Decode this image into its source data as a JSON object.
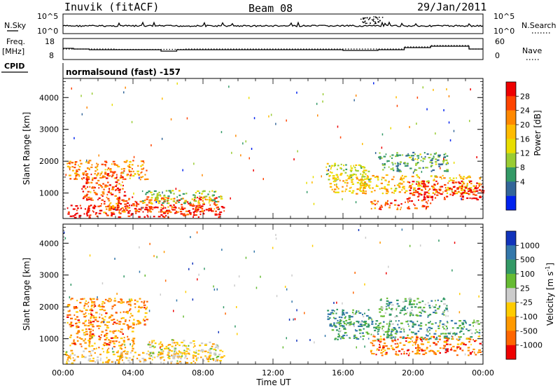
{
  "header": {
    "station": "Inuvik (fitACF)",
    "beam": "Beam 08",
    "date": "29/Jan/2011"
  },
  "top_panels": {
    "nsky_label": "N.Sky",
    "nsky_ticks": [
      "10^5",
      "10^0"
    ],
    "nsearch_label": "N.Search",
    "nsearch_ticks": [
      "10^5",
      "10^0"
    ],
    "freq_label": "Freq.",
    "freq_unit": "[MHz]",
    "freq_ticks": [
      "18",
      "8"
    ],
    "nave_label": "Nave",
    "nave_ticks": [
      "60",
      "0"
    ],
    "cpid_label": "CPID",
    "cpid_text": "normalsound (fast) -157"
  },
  "chart_data": [
    {
      "type": "heatmap",
      "name": "power-panel",
      "ylabel": "Slant Range [km]",
      "ylim": [
        200,
        4600
      ],
      "yticks": [
        "4000",
        "3000",
        "2000",
        "1000"
      ],
      "xlim": [
        0,
        24
      ],
      "colorbar": {
        "label": "Power [dB]",
        "ticks": [
          "28",
          "24",
          "20",
          "16",
          "12",
          "8",
          "4"
        ],
        "colors": [
          "#ee0000",
          "#ff4400",
          "#ff8800",
          "#ffbb00",
          "#e8dd00",
          "#99cc33",
          "#339966",
          "#336699",
          "#0022ee"
        ]
      },
      "regions": [
        {
          "t": [
            0.2,
            4.8
          ],
          "r": [
            1450,
            2050
          ],
          "level": 0.7
        },
        {
          "t": [
            1.0,
            3.5
          ],
          "r": [
            800,
            1700
          ],
          "level": 0.85
        },
        {
          "t": [
            0.1,
            9.2
          ],
          "r": [
            250,
            650
          ],
          "level": 0.95
        },
        {
          "t": [
            2.0,
            8.8
          ],
          "r": [
            400,
            900
          ],
          "level": 0.8
        },
        {
          "t": [
            4.5,
            9.0
          ],
          "r": [
            700,
            1100
          ],
          "level": 0.4
        },
        {
          "t": [
            15.0,
            17.5
          ],
          "r": [
            1400,
            1950
          ],
          "level": 0.45
        },
        {
          "t": [
            15.2,
            23.8
          ],
          "r": [
            1000,
            1600
          ],
          "level": 0.6
        },
        {
          "t": [
            19.5,
            24.0
          ],
          "r": [
            800,
            1400
          ],
          "level": 0.95
        },
        {
          "t": [
            17.5,
            21.0
          ],
          "r": [
            500,
            800
          ],
          "level": 0.8
        },
        {
          "t": [
            18.0,
            22.0
          ],
          "r": [
            1700,
            2300
          ],
          "level": 0.3
        }
      ]
    },
    {
      "type": "heatmap",
      "name": "velocity-panel",
      "ylabel": "Slant Range [km]",
      "xlabel": "Time UT",
      "ylim": [
        200,
        4600
      ],
      "yticks": [
        "4000",
        "3000",
        "2000",
        "1000"
      ],
      "xlim": [
        0,
        24
      ],
      "xticks": [
        "00:00",
        "04:00",
        "08:00",
        "12:00",
        "16:00",
        "20:00",
        "00:00"
      ],
      "colorbar": {
        "label": "Velocity [m s^-1]",
        "ticks": [
          "1000",
          "500",
          "100",
          "25",
          "-25",
          "-100",
          "-500",
          "-1000"
        ],
        "colors": [
          "#1133bb",
          "#3377aa",
          "#339966",
          "#66bb33",
          "#cccccc",
          "#ffcc00",
          "#ff9900",
          "#ff6600",
          "#ee0000"
        ]
      },
      "regions": [
        {
          "t": [
            0.2,
            4.8
          ],
          "r": [
            1450,
            2300
          ],
          "level": 0.25
        },
        {
          "t": [
            0.3,
            4.0
          ],
          "r": [
            700,
            1450
          ],
          "level": 0.25
        },
        {
          "t": [
            0.1,
            9.2
          ],
          "r": [
            250,
            650
          ],
          "level": 0.4
        },
        {
          "t": [
            4.8,
            9.0
          ],
          "r": [
            400,
            1000
          ],
          "level": 0.45
        },
        {
          "t": [
            15.0,
            17.5
          ],
          "r": [
            1400,
            1950
          ],
          "level": 0.7
        },
        {
          "t": [
            15.2,
            23.8
          ],
          "r": [
            1000,
            1600
          ],
          "level": 0.7
        },
        {
          "t": [
            17.5,
            23.8
          ],
          "r": [
            500,
            1100
          ],
          "level": 0.2
        },
        {
          "t": [
            18.0,
            22.0
          ],
          "r": [
            1700,
            2300
          ],
          "level": 0.65
        }
      ]
    }
  ]
}
